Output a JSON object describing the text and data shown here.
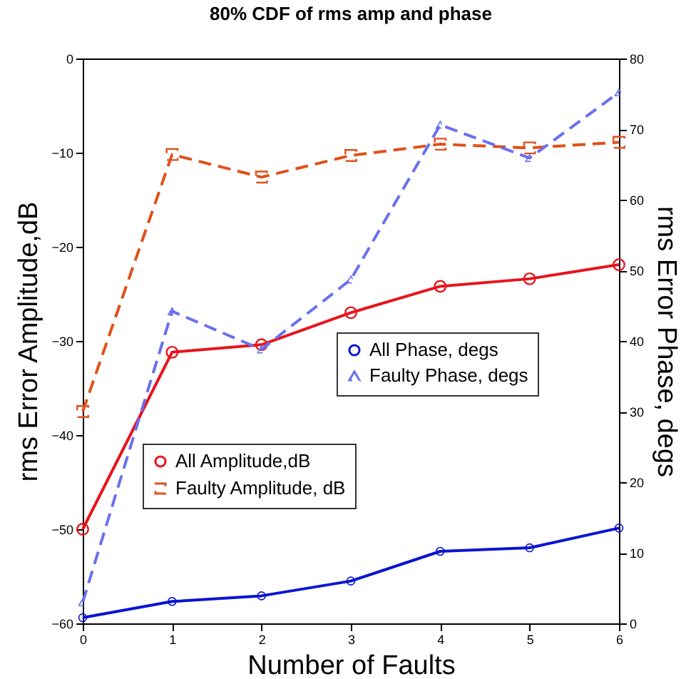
{
  "chart_data": {
    "type": "line",
    "title": "80% CDF of rms amp and phase",
    "xlabel": "Number of Faults",
    "ylabel": "rms Error Amplitude,dB",
    "y2label": "rms Error Phase, degs",
    "x": [
      0,
      1,
      2,
      3,
      4,
      5,
      6
    ],
    "xlim": [
      0,
      6
    ],
    "xticks": [
      0,
      1,
      2,
      3,
      4,
      5,
      6
    ],
    "ylim": [
      -60,
      0
    ],
    "yticks": [
      -60,
      -50,
      -40,
      -30,
      -20,
      -10,
      0
    ],
    "y2lim": [
      0,
      80
    ],
    "y2ticks": [
      0,
      10,
      20,
      30,
      40,
      50,
      60,
      70,
      80
    ],
    "grid": false,
    "legend": "center",
    "series": [
      {
        "name": "All Amplitude,dB",
        "color": "#e8141c",
        "line_style": "solid",
        "marker": "circle",
        "values": [
          -50,
          -31.2,
          -30.4,
          -27.0,
          -24.2,
          -23.4,
          -21.9
        ]
      },
      {
        "name": "Faulty Amplitude, dB",
        "color": "#e0501a",
        "line_style": "dashed",
        "marker": "square",
        "values": [
          -37.5,
          -10.2,
          -12.6,
          -10.3,
          -9.1,
          -9.5,
          -8.9
        ]
      },
      {
        "name": "All Phase, degs",
        "color": "#0a14d2",
        "line_style": "solid",
        "marker": "circle",
        "axis": "y2",
        "values": [
          0.8,
          3.1,
          3.9,
          6.0,
          10.2,
          10.7,
          13.5
        ]
      },
      {
        "name": "Faulty Phase, degs",
        "color": "#6a70ee",
        "line_style": "dashed",
        "marker": "triangle",
        "axis": "y2",
        "values": [
          3,
          44.2,
          38.8,
          48.7,
          70.6,
          65.9,
          75.2
        ]
      }
    ]
  }
}
